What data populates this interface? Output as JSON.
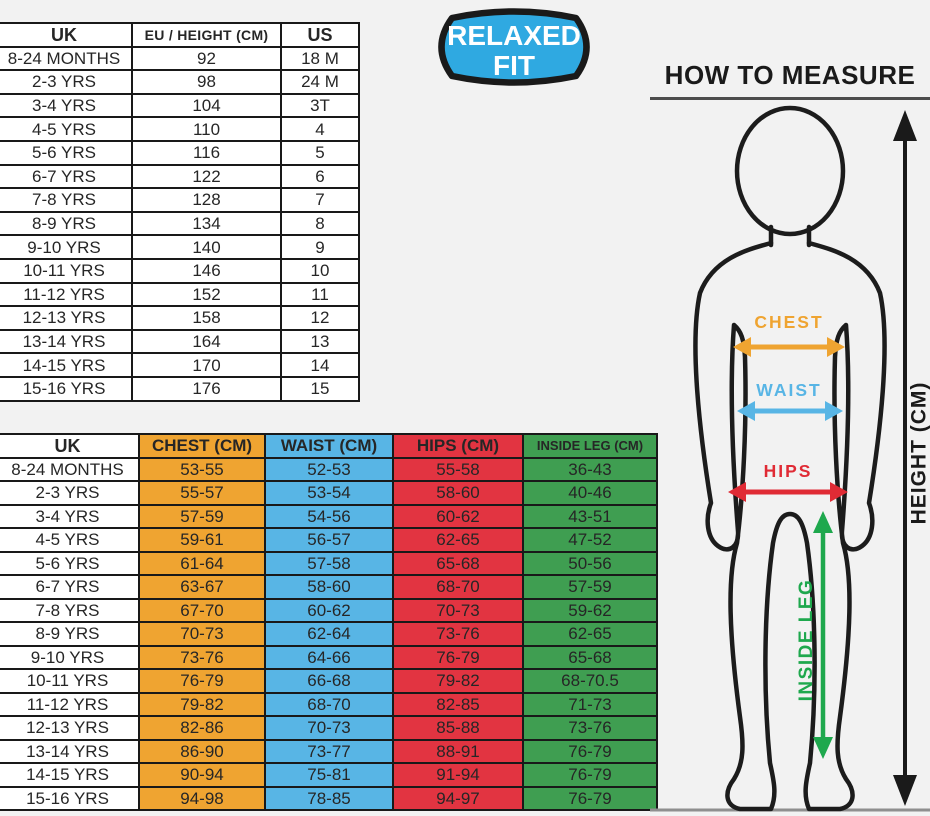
{
  "page": {
    "background": "#f2f2f2"
  },
  "badge": {
    "line1": "RELAXED",
    "line2": "FIT",
    "fill": "#2FA9E1",
    "border": "#1a1a1a",
    "text_color": "#ffffff"
  },
  "size_table": {
    "headers": [
      "UK",
      "EU / HEIGHT (CM)",
      "US"
    ],
    "rows": [
      [
        "8-24 MONTHS",
        "92",
        "18 M"
      ],
      [
        "2-3 YRS",
        "98",
        "24 M"
      ],
      [
        "3-4 YRS",
        "104",
        "3T"
      ],
      [
        "4-5 YRS",
        "110",
        "4"
      ],
      [
        "5-6 YRS",
        "116",
        "5"
      ],
      [
        "6-7 YRS",
        "122",
        "6"
      ],
      [
        "7-8 YRS",
        "128",
        "7"
      ],
      [
        "8-9 YRS",
        "134",
        "8"
      ],
      [
        "9-10 YRS",
        "140",
        "9"
      ],
      [
        "10-11 YRS",
        "146",
        "10"
      ],
      [
        "11-12 YRS",
        "152",
        "11"
      ],
      [
        "12-13 YRS",
        "158",
        "12"
      ],
      [
        "13-14 YRS",
        "164",
        "13"
      ],
      [
        "14-15 YRS",
        "170",
        "14"
      ],
      [
        "15-16 YRS",
        "176",
        "15"
      ]
    ]
  },
  "measurement_table": {
    "headers": [
      "UK",
      "CHEST (CM)",
      "WAIST (CM)",
      "HIPS (CM)",
      "INSIDE LEG (CM)"
    ],
    "column_colors": [
      "#ffffff",
      "#EFA431",
      "#58B5E5",
      "#E23441",
      "#3F9E51"
    ],
    "rows": [
      [
        "8-24 MONTHS",
        "53-55",
        "52-53",
        "55-58",
        "36-43"
      ],
      [
        "2-3 YRS",
        "55-57",
        "53-54",
        "58-60",
        "40-46"
      ],
      [
        "3-4 YRS",
        "57-59",
        "54-56",
        "60-62",
        "43-51"
      ],
      [
        "4-5 YRS",
        "59-61",
        "56-57",
        "62-65",
        "47-52"
      ],
      [
        "5-6 YRS",
        "61-64",
        "57-58",
        "65-68",
        "50-56"
      ],
      [
        "6-7 YRS",
        "63-67",
        "58-60",
        "68-70",
        "57-59"
      ],
      [
        "7-8 YRS",
        "67-70",
        "60-62",
        "70-73",
        "59-62"
      ],
      [
        "8-9 YRS",
        "70-73",
        "62-64",
        "73-76",
        "62-65"
      ],
      [
        "9-10 YRS",
        "73-76",
        "64-66",
        "76-79",
        "65-68"
      ],
      [
        "10-11 YRS",
        "76-79",
        "66-68",
        "79-82",
        "68-70.5"
      ],
      [
        "11-12 YRS",
        "79-82",
        "68-70",
        "82-85",
        "71-73"
      ],
      [
        "12-13 YRS",
        "82-86",
        "70-73",
        "85-88",
        "73-76"
      ],
      [
        "13-14 YRS",
        "86-90",
        "73-77",
        "88-91",
        "76-79"
      ],
      [
        "14-15 YRS",
        "90-94",
        "75-81",
        "91-94",
        "76-79"
      ],
      [
        "15-16 YRS",
        "94-98",
        "78-85",
        "94-97",
        "76-79"
      ]
    ]
  },
  "diagram": {
    "title": "HOW TO MEASURE",
    "chest_label": "CHEST",
    "waist_label": "WAIST",
    "hips_label": "HIPS",
    "inside_leg_label": "INSIDE LEG",
    "height_label": "HEIGHT (CM)",
    "label_colors": {
      "chest": "#EFA431",
      "waist": "#58B5E5",
      "hips": "#E02B35",
      "inside_leg": "#1EA84D",
      "height": "#1a1a1a"
    }
  }
}
